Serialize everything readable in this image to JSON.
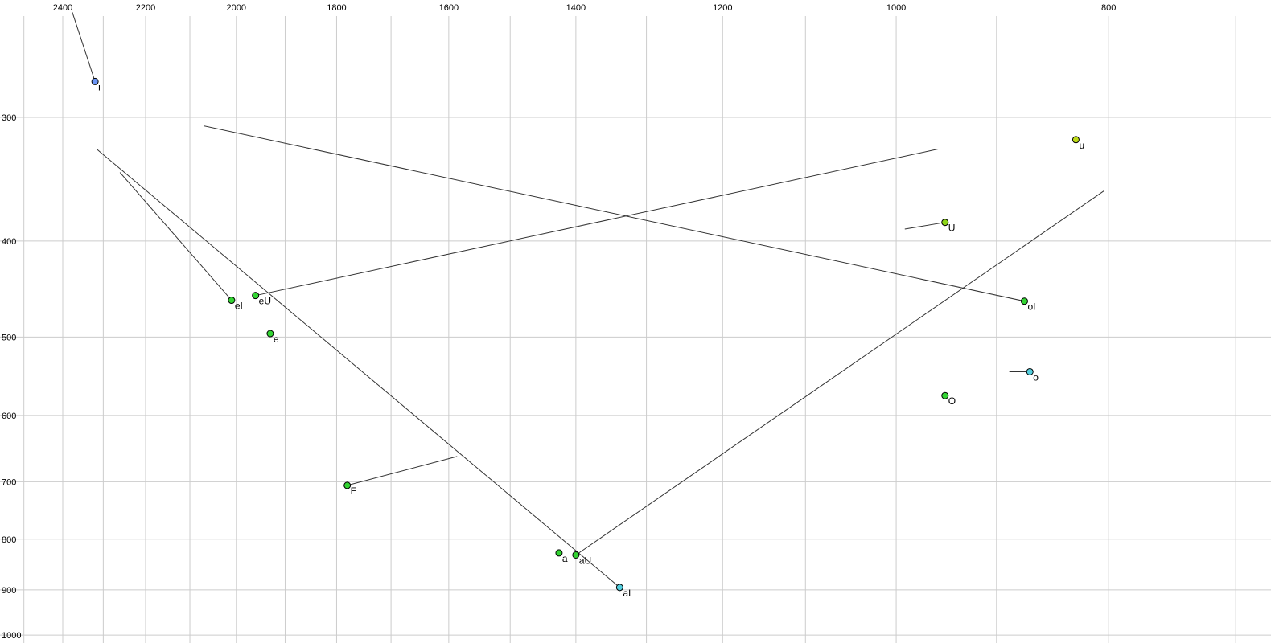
{
  "chart_data": {
    "type": "scatter",
    "title": "",
    "xlabel": "",
    "ylabel": "",
    "grid": true,
    "legend": false,
    "colors": {
      "background": "#ffffff",
      "grid": "#cccccc",
      "trajectory": "#333333",
      "point_stroke": "#000000",
      "tick_label": "#000000"
    },
    "x_axis": {
      "position": "top",
      "scale": "log",
      "reversed": true,
      "range": [
        2500,
        700
      ],
      "tick_labels": [
        2400,
        2200,
        2000,
        1800,
        1600,
        1400,
        1200,
        1000,
        800
      ],
      "grid_values": [
        2500,
        2400,
        2300,
        2200,
        2100,
        2000,
        1900,
        1800,
        1700,
        1600,
        1500,
        1400,
        1300,
        1200,
        1100,
        1000,
        900,
        800,
        700
      ]
    },
    "y_axis": {
      "position": "left",
      "scale": "log",
      "reversed": false,
      "range": [
        235,
        1030
      ],
      "tick_labels": [
        300,
        400,
        500,
        600,
        700,
        800,
        900,
        1000
      ],
      "grid_values": [
        250,
        300,
        400,
        500,
        600,
        700,
        800,
        900,
        1000
      ]
    },
    "points": [
      {
        "label": "i",
        "f2": 2320,
        "f1": 276,
        "color": "#6b95f5"
      },
      {
        "label": "u",
        "f2": 828,
        "f1": 316,
        "color": "#bcd916"
      },
      {
        "label": "U",
        "f2": 950,
        "f1": 383,
        "color": "#8ed618"
      },
      {
        "label": "eI",
        "f2": 2010,
        "f1": 459,
        "color": "#33d433"
      },
      {
        "label": "eU",
        "f2": 1960,
        "f1": 454,
        "color": "#33d433"
      },
      {
        "label": "e",
        "f2": 1930,
        "f1": 496,
        "color": "#33d433"
      },
      {
        "label": "oI",
        "f2": 874,
        "f1": 460,
        "color": "#33d433"
      },
      {
        "label": "o",
        "f2": 869,
        "f1": 542,
        "color": "#54cede"
      },
      {
        "label": "O",
        "f2": 950,
        "f1": 573,
        "color": "#33d433"
      },
      {
        "label": "E",
        "f2": 1780,
        "f1": 706,
        "color": "#33d433"
      },
      {
        "label": "a",
        "f2": 1425,
        "f1": 826,
        "color": "#33d433"
      },
      {
        "label": "aU",
        "f2": 1400,
        "f1": 830,
        "color": "#33d433"
      },
      {
        "label": "aI",
        "f2": 1337,
        "f1": 895,
        "color": "#54cede"
      }
    ],
    "trajectories": [
      {
        "vowel": "i",
        "from": {
          "f2": 2376,
          "f1": 235
        },
        "to": {
          "f2": 2320,
          "f1": 276
        }
      },
      {
        "vowel": "eI",
        "from": {
          "f2": 2010,
          "f1": 459
        },
        "to": {
          "f2": 2260,
          "f1": 341
        }
      },
      {
        "vowel": "aI",
        "from": {
          "f2": 1337,
          "f1": 895
        },
        "to": {
          "f2": 2316,
          "f1": 323
        }
      },
      {
        "vowel": "oI",
        "from": {
          "f2": 874,
          "f1": 460
        },
        "to": {
          "f2": 2070,
          "f1": 306
        }
      },
      {
        "vowel": "eU",
        "from": {
          "f2": 1960,
          "f1": 454
        },
        "to": {
          "f2": 957,
          "f1": 323
        }
      },
      {
        "vowel": "aU",
        "from": {
          "f2": 1400,
          "f1": 830
        },
        "to": {
          "f2": 804,
          "f1": 356
        }
      },
      {
        "vowel": "E",
        "from": {
          "f2": 1780,
          "f1": 706
        },
        "to": {
          "f2": 1586,
          "f1": 660
        }
      },
      {
        "vowel": "U",
        "from": {
          "f2": 950,
          "f1": 383
        },
        "to": {
          "f2": 991,
          "f1": 389
        }
      },
      {
        "vowel": "o",
        "from": {
          "f2": 869,
          "f1": 542
        },
        "to": {
          "f2": 888,
          "f1": 542
        }
      }
    ]
  }
}
